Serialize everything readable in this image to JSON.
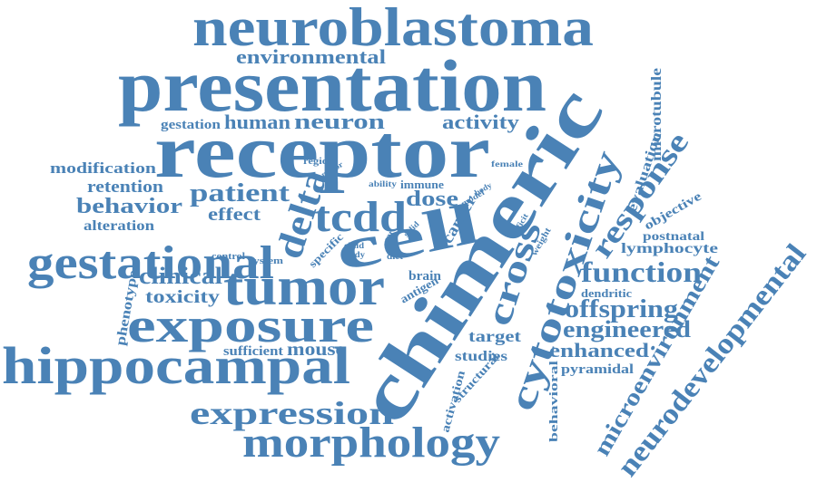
{
  "colors": {
    "word": "#4a82b6",
    "background": "#ffffff"
  },
  "words": [
    "neuroblastoma",
    "environmental",
    "presentation",
    "receptor",
    "chimeric",
    "cytotoxicity",
    "response",
    "microtubule",
    "evaluation",
    "gestation",
    "human",
    "neuron",
    "activity",
    "modification",
    "region",
    "motor",
    "female",
    "retention",
    "patient",
    "ability",
    "immune",
    "behavior",
    "dose",
    "model",
    "body",
    "delta",
    "tcdd",
    "cell",
    "effect",
    "objective",
    "alteration",
    "cancer",
    "deficit",
    "weight",
    "postnatal",
    "gestational",
    "lymphocyte",
    "child",
    "study",
    "car",
    "solid",
    "control",
    "system",
    "specific",
    "diet",
    "brain",
    "function",
    "clinical",
    "antigen",
    "cross",
    "tumor",
    "dendritic",
    "phenotype",
    "toxicity",
    "offspring",
    "exposure",
    "engineered",
    "target",
    "sufficient",
    "mouse",
    "enhanced",
    "hippocampal",
    "studies",
    "pyramidal",
    "structural",
    "activation",
    "behavioral",
    "microenvironment",
    "neurodevelopmental",
    "expression",
    "morphology"
  ]
}
